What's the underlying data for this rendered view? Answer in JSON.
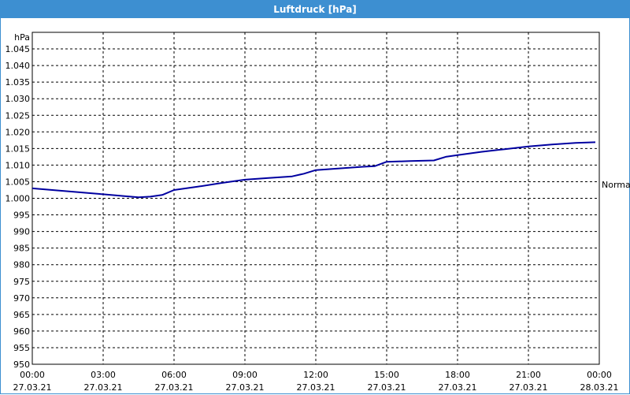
{
  "window": {
    "title": "Luftdruck [hPa]"
  },
  "chart_data": {
    "type": "line",
    "title": "Luftdruck [hPa]",
    "ylabel": "hPa",
    "ylim": [
      950,
      1050
    ],
    "y_ticks": [
      "1.045",
      "1.040",
      "1.035",
      "1.030",
      "1.025",
      "1.020",
      "1.015",
      "1.010",
      "1.005",
      "1.000",
      "995",
      "990",
      "985",
      "980",
      "975",
      "970",
      "965",
      "960",
      "955",
      "950"
    ],
    "x_ticks": [
      {
        "time": "00:00",
        "date": "27.03.21"
      },
      {
        "time": "03:00",
        "date": "27.03.21"
      },
      {
        "time": "06:00",
        "date": "27.03.21"
      },
      {
        "time": "09:00",
        "date": "27.03.21"
      },
      {
        "time": "12:00",
        "date": "27.03.21"
      },
      {
        "time": "15:00",
        "date": "27.03.21"
      },
      {
        "time": "18:00",
        "date": "27.03.21"
      },
      {
        "time": "21:00",
        "date": "27.03.21"
      },
      {
        "time": "00:00",
        "date": "28.03.21"
      }
    ],
    "xlim": [
      "27.03.21 00:00",
      "28.03.21 00:00"
    ],
    "grid": true,
    "reference_line_label": "Normal",
    "reference_value": 1005,
    "line_color": "#0000a0",
    "series": [
      {
        "x": [
          "27.03.21 00:00",
          "27.03.21 01:00",
          "27.03.21 02:00",
          "27.03.21 03:00",
          "27.03.21 04:00",
          "27.03.21 04:30",
          "27.03.21 05:00",
          "27.03.21 05:30",
          "27.03.21 06:00",
          "27.03.21 07:00",
          "27.03.21 08:00",
          "27.03.21 09:00",
          "27.03.21 10:00",
          "27.03.21 11:00",
          "27.03.21 11:30",
          "27.03.21 12:00",
          "27.03.21 13:00",
          "27.03.21 14:00",
          "27.03.21 14:30",
          "27.03.21 15:00",
          "27.03.21 16:00",
          "27.03.21 17:00",
          "27.03.21 17:30",
          "27.03.21 18:00",
          "27.03.21 19:00",
          "27.03.21 20:00",
          "27.03.21 21:00",
          "27.03.21 22:00",
          "27.03.21 23:00",
          "27.03.21 23:50"
        ],
        "y": [
          1003.0,
          1002.4,
          1001.8,
          1001.2,
          1000.6,
          1000.3,
          1000.5,
          1001.0,
          1002.5,
          1003.5,
          1004.6,
          1005.6,
          1006.1,
          1006.6,
          1007.4,
          1008.5,
          1009.0,
          1009.5,
          1009.7,
          1011.0,
          1011.2,
          1011.4,
          1012.5,
          1013.0,
          1014.0,
          1014.8,
          1015.6,
          1016.2,
          1016.7,
          1016.9
        ]
      }
    ]
  }
}
